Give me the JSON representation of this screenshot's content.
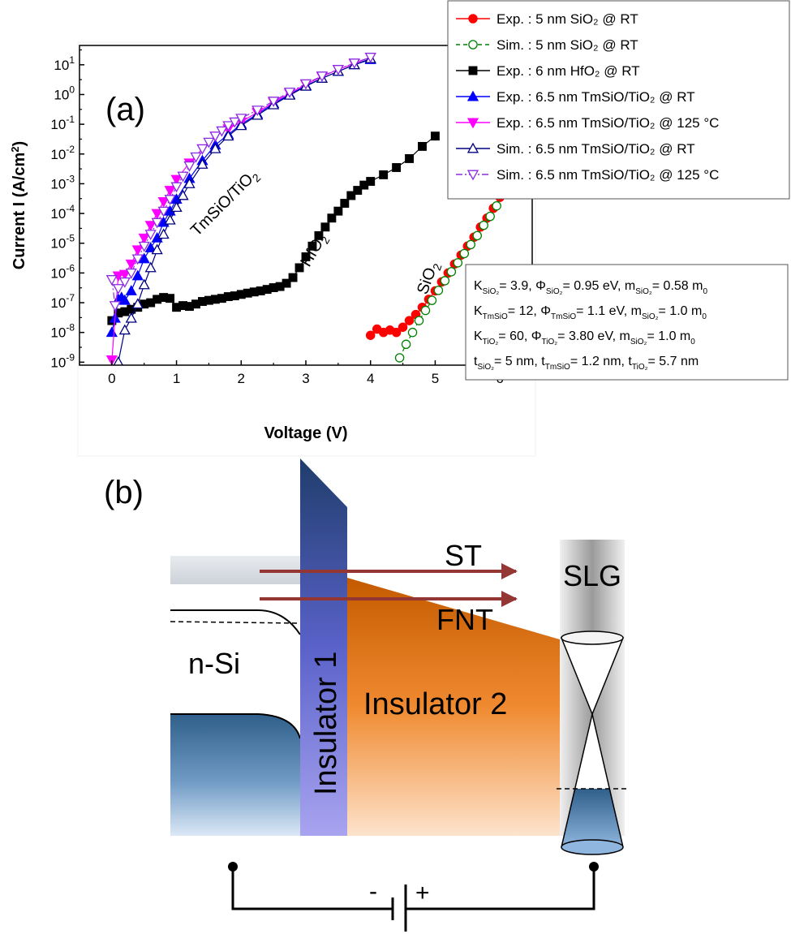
{
  "panel_a": {
    "label": "(a)",
    "curve_labels": {
      "tmsio": {
        "main": "TmSiO/TiO",
        "sub": "2"
      },
      "hfo2": {
        "main": "HfO",
        "sub": "2"
      },
      "sio2": {
        "main": "SiO",
        "sub": "2"
      }
    },
    "params": [
      {
        "parts": [
          [
            "K",
            ""
          ],
          [
            "SiO₂",
            "s"
          ],
          [
            "= 3.9,  ",
            ""
          ],
          [
            "Φ",
            ""
          ],
          [
            "SiO₂",
            "s"
          ],
          [
            "= 0.95 eV, m",
            ""
          ],
          [
            "SiO₂",
            "s"
          ],
          [
            "= 0.58 m",
            ""
          ],
          [
            "0",
            "s"
          ]
        ]
      },
      {
        "parts": [
          [
            "K",
            ""
          ],
          [
            "TmSiO",
            "s"
          ],
          [
            "= 12, ",
            ""
          ],
          [
            "Φ",
            ""
          ],
          [
            "TmSiO",
            "s"
          ],
          [
            "= 1.1 eV, m",
            ""
          ],
          [
            "SiO₂",
            "s"
          ],
          [
            "= 1.0 m",
            ""
          ],
          [
            "0",
            "s"
          ]
        ]
      },
      {
        "parts": [
          [
            "K",
            ""
          ],
          [
            "TiO₂",
            "s"
          ],
          [
            "= 60,   ",
            ""
          ],
          [
            "Φ",
            ""
          ],
          [
            "TiO₂",
            "s"
          ],
          [
            "= 3.80 eV, m",
            ""
          ],
          [
            "SiO₂",
            "s"
          ],
          [
            "= 1.0 m",
            ""
          ],
          [
            "0",
            "s"
          ]
        ]
      },
      {
        "parts": [
          [
            "t",
            ""
          ],
          [
            "SiO₂",
            "s"
          ],
          [
            "= 5 nm, t",
            ""
          ],
          [
            "TmSiO",
            "s"
          ],
          [
            "= 1.2 nm, t",
            ""
          ],
          [
            "TiO₂",
            "s"
          ],
          [
            "= 5.7 nm",
            ""
          ]
        ]
      }
    ]
  },
  "chart_data": {
    "type": "scatter",
    "xlabel": "Voltage (V)",
    "ylabel": {
      "main": "Current I (A/cm",
      "sup": "2",
      "end": ")"
    },
    "xlim": [
      -0.5,
      6.5
    ],
    "ylim_log10": [
      -9.1,
      1.65
    ],
    "y_scale": "log",
    "x_ticks": [
      "0",
      "1",
      "2",
      "3",
      "4",
      "5",
      "6"
    ],
    "y_ticks": [
      {
        "base": "10",
        "exp": "1"
      },
      {
        "base": "10",
        "exp": "0"
      },
      {
        "base": "10",
        "exp": "-1"
      },
      {
        "base": "10",
        "exp": "-2"
      },
      {
        "base": "10",
        "exp": "-3"
      },
      {
        "base": "10",
        "exp": "-4"
      },
      {
        "base": "10",
        "exp": "-5"
      },
      {
        "base": "10",
        "exp": "-6"
      },
      {
        "base": "10",
        "exp": "-7"
      },
      {
        "base": "10",
        "exp": "-8"
      },
      {
        "base": "10",
        "exp": "-9"
      }
    ],
    "legend_position": "top-right",
    "series": [
      {
        "name": "Exp. : 5 nm    SiO₂               @ RT",
        "color": "#ff0000",
        "marker": "circle-filled",
        "line": "solid",
        "x": [
          4.0,
          4.1,
          4.2,
          4.3,
          4.4,
          4.5,
          4.6,
          4.7,
          4.8,
          4.9,
          5.0,
          5.1,
          5.2,
          5.3,
          5.4,
          5.5,
          5.6,
          5.7,
          5.8,
          5.9,
          6.0
        ],
        "y": [
          8e-09,
          1.3e-08,
          1e-08,
          1.2e-08,
          1e-08,
          1.5e-08,
          2.5e-08,
          4e-08,
          7e-08,
          1.3e-07,
          2.5e-07,
          5e-07,
          1e-06,
          2e-06,
          4e-06,
          8e-06,
          1.6e-05,
          3.5e-05,
          7e-05,
          0.00015,
          0.00035
        ]
      },
      {
        "name": "Sim. : 5 nm    SiO₂               @ RT",
        "color": "#008000",
        "marker": "circle-open",
        "line": "dashed",
        "x": [
          4.45,
          4.55,
          4.65,
          4.75,
          4.85,
          4.95,
          5.05,
          5.15,
          5.25,
          5.35,
          5.45,
          5.55,
          5.65,
          5.75,
          5.85,
          5.95,
          6.05
        ],
        "y": [
          1.4e-09,
          4e-09,
          1e-08,
          2.5e-08,
          5.5e-08,
          1.2e-07,
          2.6e-07,
          5.5e-07,
          1.1e-06,
          2.2e-06,
          4.5e-06,
          9e-06,
          1.8e-05,
          4e-05,
          8e-05,
          0.00018,
          0.00045
        ]
      },
      {
        "name": "Exp. : 6 nm    HfO₂               @ RT",
        "color": "#000000",
        "marker": "square-filled",
        "line": "solid",
        "x": [
          0.0,
          0.1,
          0.2,
          0.3,
          0.4,
          0.5,
          0.6,
          0.7,
          0.8,
          0.9,
          1.0,
          1.1,
          1.2,
          1.3,
          1.4,
          1.5,
          1.6,
          1.7,
          1.8,
          1.9,
          2.0,
          2.1,
          2.2,
          2.3,
          2.4,
          2.5,
          2.6,
          2.7,
          2.8,
          2.9,
          3.0,
          3.1,
          3.2,
          3.3,
          3.4,
          3.5,
          3.6,
          3.7,
          3.8,
          3.9,
          4.0,
          4.2,
          4.4,
          4.6,
          4.8,
          5.0
        ],
        "y": [
          2.5e-08,
          4.5e-08,
          5e-08,
          6e-08,
          7e-08,
          9e-08,
          1e-07,
          1.3e-07,
          1.5e-07,
          1.4e-07,
          7e-08,
          8e-08,
          7.5e-08,
          9e-08,
          1.1e-07,
          1.2e-07,
          1.3e-07,
          1.4e-07,
          1.6e-07,
          1.7e-07,
          1.9e-07,
          2.1e-07,
          2.3e-07,
          2.5e-07,
          2.8e-07,
          3.2e-07,
          3.5e-07,
          4.5e-07,
          7e-07,
          1.5e-06,
          3.5e-06,
          8e-06,
          1.8e-05,
          3.5e-05,
          7e-05,
          0.00012,
          0.00022,
          0.0004,
          0.0006,
          0.0009,
          0.0012,
          0.002,
          0.0035,
          0.007,
          0.018,
          0.04
        ]
      },
      {
        "name": "Exp. : 6.5 nm TmSiO/TiO₂ @ RT",
        "color": "#0000ff",
        "marker": "triangle-up-filled",
        "line": "solid",
        "x": [
          0.0,
          0.05,
          0.1,
          0.15,
          0.2,
          0.3,
          0.4,
          0.5,
          0.6,
          0.7,
          0.8,
          0.9,
          1.0,
          1.2,
          1.4,
          1.6,
          1.8,
          2.0,
          2.25,
          2.5,
          2.75,
          3.0,
          3.25,
          3.5,
          3.75,
          4.0
        ],
        "y": [
          1e-08,
          3e-08,
          1.3e-07,
          1.5e-07,
          1.2e-07,
          2.5e-07,
          8e-07,
          3e-06,
          7e-06,
          1.5e-05,
          5e-05,
          0.00012,
          0.0003,
          0.0015,
          0.006,
          0.02,
          0.045,
          0.1,
          0.22,
          0.5,
          1.0,
          2.0,
          3.5,
          6.0,
          10,
          15
        ]
      },
      {
        "name": "Exp. : 6.5 nm TmSiO/TiO₂ @ 125 °C",
        "color": "#ff00ff",
        "marker": "triangle-down-filled",
        "line": "solid",
        "x": [
          0.0,
          0.1,
          0.2,
          0.3,
          0.4,
          0.5,
          0.6,
          0.7,
          0.8,
          0.9,
          1.0,
          1.2,
          1.4,
          1.6,
          1.8,
          2.0,
          2.25,
          2.5,
          2.75,
          3.0,
          3.25,
          3.5,
          3.75,
          4.0
        ],
        "y": [
          1.2e-09,
          8e-07,
          9e-07,
          2e-06,
          6e-06,
          1.5e-05,
          4e-05,
          0.0001,
          0.00025,
          0.0006,
          0.0014,
          0.005,
          0.015,
          0.04,
          0.07,
          0.12,
          0.25,
          0.55,
          1.1,
          2.2,
          4.0,
          7.0,
          11,
          18
        ]
      },
      {
        "name": "Sim. : 6.5 nm TmSiO/TiO₂ @ RT",
        "color": "#000080",
        "marker": "triangle-up-open",
        "line": "solid",
        "x": [
          0.1,
          0.2,
          0.3,
          0.4,
          0.5,
          0.6,
          0.7,
          0.8,
          0.9,
          1.0,
          1.1,
          1.2,
          1.4,
          1.6,
          1.8,
          2.0,
          2.25,
          2.5,
          2.75,
          3.0,
          3.25,
          3.5,
          3.75,
          4.0
        ],
        "y": [
          1e-09,
          1.2e-08,
          3e-08,
          9e-08,
          4e-07,
          1.5e-06,
          6e-06,
          2e-05,
          6e-05,
          0.00016,
          0.0004,
          0.001,
          0.0045,
          0.015,
          0.04,
          0.09,
          0.2,
          0.45,
          0.95,
          1.9,
          3.5,
          6.0,
          10,
          16
        ]
      },
      {
        "name": "Sim. : 6.5 nm TmSiO/TiO₂ @ 125 °C",
        "color": "#8a2be2",
        "marker": "triangle-down-open",
        "line": "dashdot",
        "x": [
          0.0,
          0.05,
          0.1,
          0.2,
          0.3,
          0.4,
          0.5,
          0.6,
          0.7,
          0.8,
          0.9,
          1.0,
          1.1,
          1.2,
          1.3,
          1.4,
          1.5,
          1.6,
          1.7,
          1.8,
          1.9,
          2.0,
          2.25,
          2.5,
          2.75,
          3.0,
          3.25,
          3.5,
          3.75,
          4.0
        ],
        "y": [
          6e-07,
          8e-08,
          3e-07,
          5e-07,
          1e-06,
          3e-06,
          8e-06,
          2e-05,
          5e-05,
          0.00012,
          0.0003,
          0.0008,
          0.0018,
          0.004,
          0.008,
          0.015,
          0.025,
          0.04,
          0.06,
          0.09,
          0.12,
          0.16,
          0.3,
          0.6,
          1.2,
          2.3,
          4.2,
          7.0,
          11.5,
          18
        ]
      }
    ]
  },
  "panel_b": {
    "label": "(b)",
    "nsi": "n-Si",
    "insulator1": "Insulator 1",
    "insulator2": "Insulator 2",
    "st": "ST",
    "fnt": "FNT",
    "slg": "SLG",
    "minus": "-",
    "plus": "+"
  }
}
